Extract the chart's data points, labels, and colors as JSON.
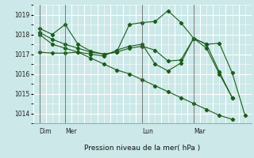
{
  "background_color": "#cce8e8",
  "grid_color": "#ffffff",
  "line_color": "#1a5c1a",
  "title": "Pression niveau de la mer( hPa )",
  "ylim": [
    1013.5,
    1019.5
  ],
  "yticks": [
    1014,
    1015,
    1016,
    1017,
    1018,
    1019
  ],
  "day_labels": [
    "Dim",
    "Mer",
    "Lun",
    "Mar"
  ],
  "series": [
    {
      "x": [
        0,
        1,
        2,
        3,
        4,
        5,
        6,
        7,
        8,
        9,
        10,
        11,
        12,
        13,
        14,
        15,
        16
      ],
      "y": [
        1018.3,
        1018.0,
        1018.5,
        1017.5,
        1017.15,
        1017.0,
        1017.1,
        1018.5,
        1018.6,
        1018.65,
        1019.2,
        1018.6,
        1017.8,
        1017.5,
        1017.55,
        1016.05,
        1013.9
      ]
    },
    {
      "x": [
        0,
        1,
        2,
        3,
        4,
        5,
        6,
        7,
        8,
        9,
        10,
        11,
        12,
        13,
        14,
        15
      ],
      "y": [
        1017.1,
        1017.05,
        1017.05,
        1017.1,
        1017.0,
        1016.9,
        1017.2,
        1017.4,
        1017.5,
        1016.5,
        1016.15,
        1016.55,
        1017.8,
        1017.3,
        1016.0,
        1014.8
      ]
    },
    {
      "x": [
        0,
        1,
        2,
        3,
        4,
        5,
        6,
        7,
        8,
        9,
        10,
        11,
        12,
        13,
        14,
        15
      ],
      "y": [
        1018.1,
        1017.75,
        1017.5,
        1017.3,
        1017.1,
        1017.0,
        1017.1,
        1017.3,
        1017.4,
        1017.2,
        1016.65,
        1016.7,
        1017.8,
        1017.5,
        1016.1,
        1014.8
      ]
    },
    {
      "x": [
        0,
        1,
        2,
        3,
        4,
        5,
        6,
        7,
        8,
        9,
        10,
        11,
        12,
        13,
        14,
        15
      ],
      "y": [
        1018.0,
        1017.5,
        1017.3,
        1017.1,
        1016.8,
        1016.5,
        1016.2,
        1016.0,
        1015.7,
        1015.4,
        1015.1,
        1014.8,
        1014.5,
        1014.2,
        1013.9,
        1013.7
      ]
    }
  ],
  "n_points": 17,
  "figsize": [
    3.2,
    2.0
  ],
  "dpi": 100
}
